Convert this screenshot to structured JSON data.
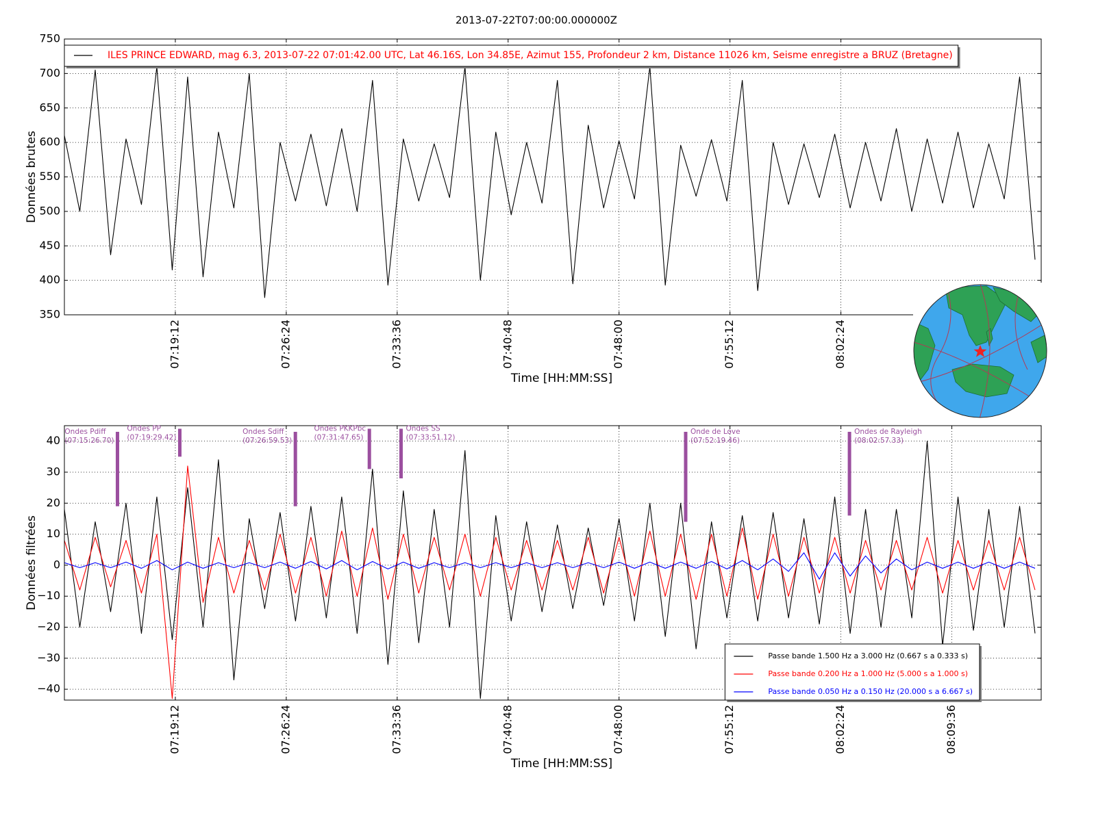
{
  "chart_data": [
    {
      "type": "line",
      "title": "2013-07-22T07:00:00.000000Z",
      "xlabel": "Time [HH:MM:SS]",
      "ylabel": "Données brutes",
      "x": [
        "07:12:00",
        "07:13:00",
        "07:14:00",
        "07:15:00",
        "07:16:00",
        "07:17:00",
        "07:18:00",
        "07:19:00",
        "07:20:00",
        "07:21:00",
        "07:22:00",
        "07:23:00",
        "07:24:00",
        "07:25:00",
        "07:26:00",
        "07:27:00",
        "07:28:00",
        "07:29:00",
        "07:30:00",
        "07:31:00",
        "07:32:00",
        "07:33:00",
        "07:34:00",
        "07:35:00",
        "07:36:00",
        "07:37:00",
        "07:38:00",
        "07:39:00",
        "07:40:00",
        "07:41:00",
        "07:42:00",
        "07:43:00",
        "07:44:00",
        "07:45:00",
        "07:46:00",
        "07:47:00",
        "07:48:00",
        "07:49:00",
        "07:50:00",
        "07:51:00",
        "07:52:00",
        "07:53:00",
        "07:54:00",
        "07:55:00",
        "07:56:00",
        "07:57:00",
        "07:58:00",
        "07:59:00",
        "08:00:00",
        "08:01:00",
        "08:02:00",
        "08:03:00",
        "08:04:00",
        "08:05:00",
        "08:06:00",
        "08:07:00",
        "08:08:00",
        "08:09:00",
        "08:10:00",
        "08:11:00",
        "08:12:00",
        "08:13:00",
        "08:14:00",
        "08:15:00"
      ],
      "series": [
        {
          "name": "ILES PRINCE EDWARD, mag 6.3,  2013-07-22 07:01:42.00 UTC, Lat 46.16S, Lon 34.85E, Azimut 155, Profondeur 2 km, Distance 11026 km, Seisme enregistre a BRUZ (Bretagne)",
          "color": "#000000",
          "values": [
            610,
            500,
            705,
            437,
            605,
            510,
            710,
            415,
            695,
            405,
            615,
            505,
            700,
            375,
            600,
            515,
            612,
            508,
            620,
            500,
            690,
            393,
            605,
            515,
            598,
            520,
            710,
            400,
            615,
            495,
            600,
            512,
            690,
            395,
            625,
            505,
            602,
            518,
            710,
            393,
            596,
            522,
            604,
            515,
            690,
            385,
            600,
            510,
            598,
            520,
            612,
            505,
            600,
            515,
            620,
            500,
            605,
            512,
            615,
            505,
            598,
            518,
            695,
            430
          ]
        }
      ],
      "xlim": [
        "07:12:00",
        "08:15:24"
      ],
      "ylim": [
        350,
        750
      ],
      "xticks": [
        "07:19:12",
        "07:26:24",
        "07:33:36",
        "07:40:48",
        "07:48:00",
        "07:55:12",
        "08:02:24"
      ],
      "yticks": [
        350,
        400,
        450,
        500,
        550,
        600,
        650,
        700,
        750
      ],
      "grid": true,
      "legend": "upper left",
      "legend_text_color": "#ff0000"
    },
    {
      "type": "line",
      "xlabel": "Time [HH:MM:SS]",
      "ylabel": "Données filtrées",
      "x": [
        "07:12:00",
        "07:13:00",
        "07:14:00",
        "07:15:00",
        "07:16:00",
        "07:17:00",
        "07:18:00",
        "07:19:00",
        "07:20:00",
        "07:21:00",
        "07:22:00",
        "07:23:00",
        "07:24:00",
        "07:25:00",
        "07:26:00",
        "07:27:00",
        "07:28:00",
        "07:29:00",
        "07:30:00",
        "07:31:00",
        "07:32:00",
        "07:33:00",
        "07:34:00",
        "07:35:00",
        "07:36:00",
        "07:37:00",
        "07:38:00",
        "07:39:00",
        "07:40:00",
        "07:41:00",
        "07:42:00",
        "07:43:00",
        "07:44:00",
        "07:45:00",
        "07:46:00",
        "07:47:00",
        "07:48:00",
        "07:49:00",
        "07:50:00",
        "07:51:00",
        "07:52:00",
        "07:53:00",
        "07:54:00",
        "07:55:00",
        "07:56:00",
        "07:57:00",
        "07:58:00",
        "07:59:00",
        "08:00:00",
        "08:01:00",
        "08:02:00",
        "08:03:00",
        "08:04:00",
        "08:05:00",
        "08:06:00",
        "08:07:00",
        "08:08:00",
        "08:09:00",
        "08:10:00",
        "08:11:00",
        "08:12:00",
        "08:13:00",
        "08:14:00",
        "08:15:00"
      ],
      "series": [
        {
          "name": "Passe bande 1.500 Hz a 3.000 Hz (0.667 s a 0.333 s)",
          "color": "#000000",
          "values": [
            18,
            -20,
            14,
            -15,
            20,
            -22,
            22,
            -24,
            25,
            -20,
            34,
            -37,
            15,
            -14,
            17,
            -18,
            19,
            -17,
            22,
            -22,
            31,
            -32,
            24,
            -25,
            18,
            -20,
            37,
            -43,
            16,
            -18,
            14,
            -15,
            13,
            -14,
            12,
            -13,
            15,
            -18,
            20,
            -23,
            20,
            -27,
            14,
            -17,
            16,
            -18,
            17,
            -17,
            15,
            -19,
            22,
            -22,
            18,
            -20,
            18,
            -17,
            40,
            -26,
            22,
            -21,
            18,
            -20,
            19,
            -22
          ]
        },
        {
          "name": "Passe bande 0.200 Hz a 1.000 Hz (5.000 s a 1.000 s)",
          "color": "#ff0000",
          "values": [
            8,
            -8,
            9,
            -7,
            8,
            -9,
            10,
            -43,
            32,
            -12,
            9,
            -9,
            8,
            -8,
            10,
            -9,
            9,
            -10,
            11,
            -10,
            12,
            -11,
            10,
            -9,
            9,
            -8,
            10,
            -10,
            9,
            -8,
            8,
            -8,
            8,
            -8,
            9,
            -9,
            9,
            -10,
            11,
            -10,
            10,
            -11,
            10,
            -10,
            12,
            -11,
            10,
            -10,
            9,
            -9,
            9,
            -9,
            8,
            -8,
            8,
            -8,
            9,
            -9,
            8,
            -8,
            8,
            -8,
            9,
            -8
          ]
        },
        {
          "name": "Passe bande 0.050 Hz a 0.150 Hz (20.000 s a 6.667 s)",
          "color": "#0000ff",
          "values": [
            0.8,
            -0.8,
            0.8,
            -0.8,
            1,
            -1,
            1.5,
            -1.5,
            1,
            -1,
            0.8,
            -0.8,
            0.8,
            -0.8,
            1,
            -1,
            1.2,
            -1.2,
            1.5,
            -1.5,
            1.2,
            -1.2,
            1,
            -1,
            0.8,
            -0.8,
            0.8,
            -0.8,
            0.8,
            -0.8,
            0.8,
            -0.8,
            0.8,
            -0.8,
            0.8,
            -0.8,
            1,
            -1,
            1,
            -1,
            1,
            -1,
            1.2,
            -1.2,
            1.5,
            -1.5,
            2,
            -2,
            4,
            -4.5,
            4,
            -3.5,
            3,
            -2.5,
            2,
            -1.5,
            1,
            -1,
            1,
            -1,
            1,
            -1,
            1,
            -1
          ]
        }
      ],
      "annotations": [
        {
          "label": "Ondes Pdiff",
          "time": "(07:15:26.70)",
          "span": [
            43,
            19
          ]
        },
        {
          "label": "Ondes PP",
          "time": "(07:19:29.42)",
          "span": [
            44,
            35
          ]
        },
        {
          "label": "Ondes Sdiff",
          "time": "(07:26:59.53)",
          "span": [
            43,
            19
          ]
        },
        {
          "label": "Ondes PKKPbc",
          "time": "(07:31:47.65)",
          "span": [
            44,
            31
          ]
        },
        {
          "label": "Ondes SS",
          "time": "(07:33:51.12)",
          "span": [
            44,
            28
          ]
        },
        {
          "label": "Onde de Love",
          "time": "(07:52:19.46)",
          "span": [
            43,
            14
          ]
        },
        {
          "label": "Ondes de Rayleigh",
          "time": "(08:02:57.33)",
          "span": [
            43,
            16
          ]
        }
      ],
      "annotation_color": "#9b4f9f",
      "xlim": [
        "07:12:00",
        "08:15:24"
      ],
      "ylim": [
        -43.5,
        45
      ],
      "xticks": [
        "07:19:12",
        "07:26:24",
        "07:33:36",
        "07:40:48",
        "07:48:00",
        "07:55:12",
        "08:02:24",
        "08:09:36"
      ],
      "yticks": [
        {
          "value": -40,
          "label": "−40"
        },
        {
          "value": -30,
          "label": "−30"
        },
        {
          "value": -20,
          "label": "−20"
        },
        {
          "value": -10,
          "label": "−10"
        },
        0,
        10,
        20,
        30,
        40
      ],
      "grid": true,
      "legend": "lower right",
      "legend_text_color": "series"
    }
  ]
}
